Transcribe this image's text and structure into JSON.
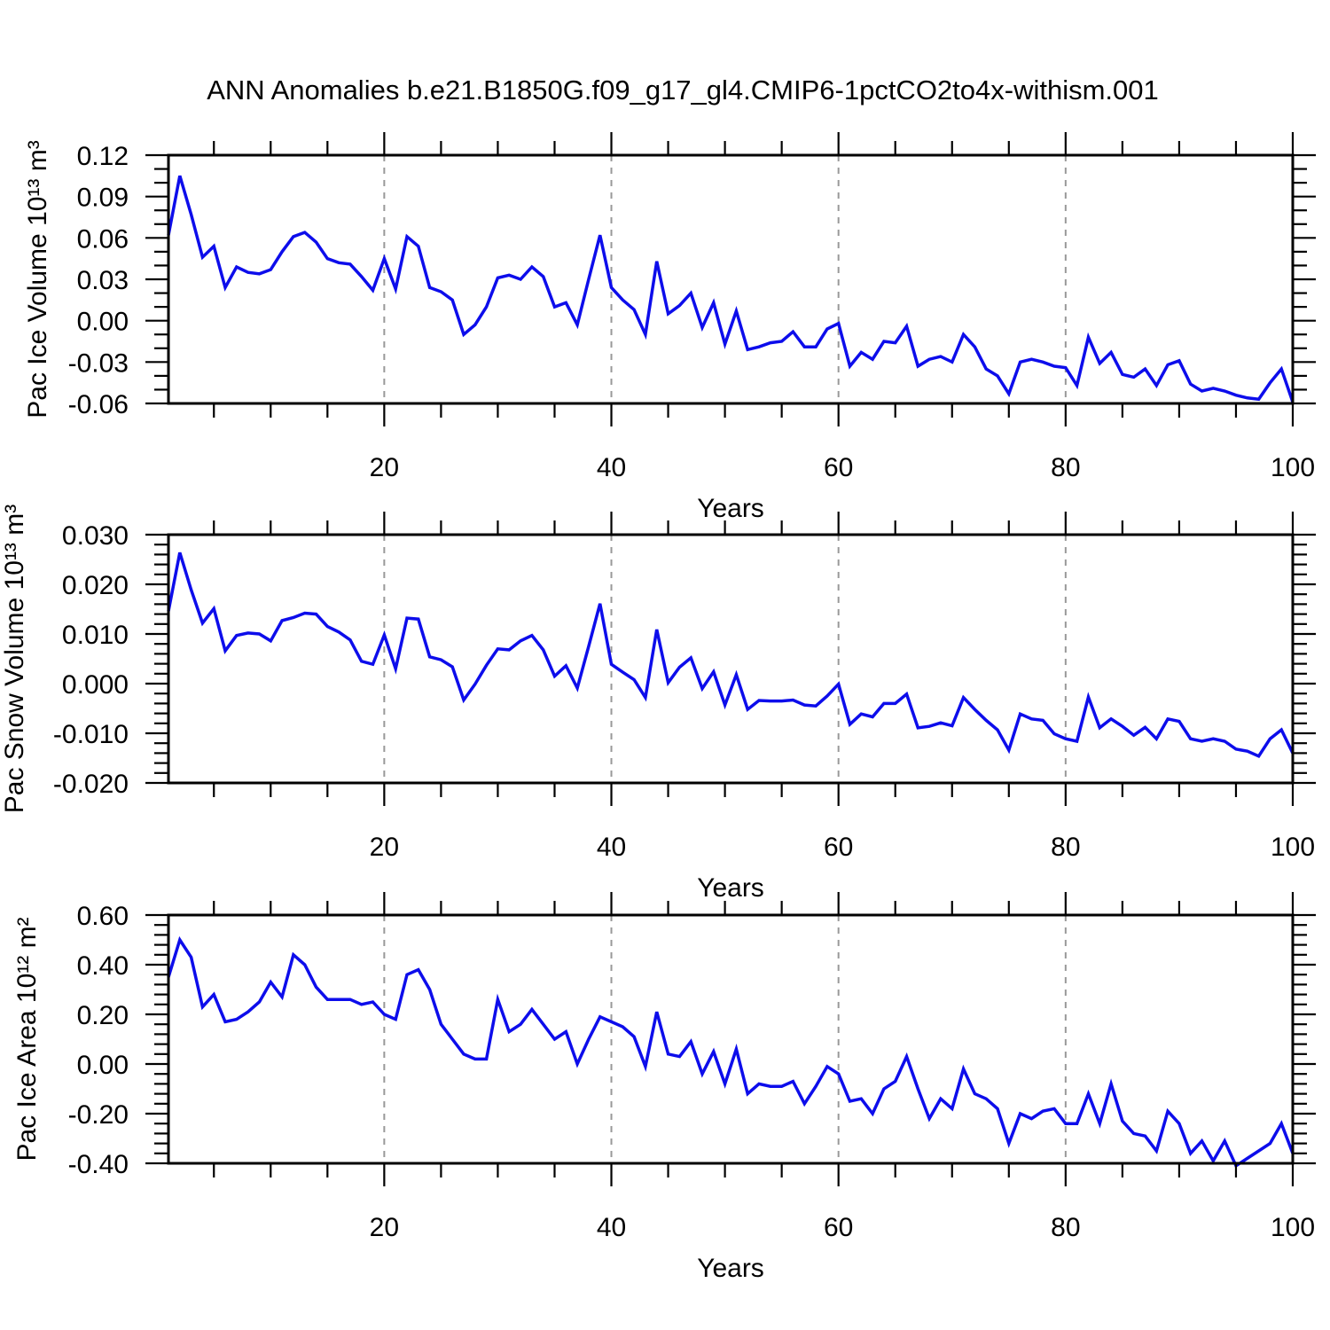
{
  "title": "ANN Anomalies b.e21.B1850G.f09_g17_gl4.CMIP6-1pctCO2to4x-withism.001",
  "colors": {
    "line": "#0d0deb",
    "grid": "#999999",
    "axis": "#000000",
    "text": "#000000",
    "background": "#ffffff"
  },
  "chart_data": [
    {
      "type": "line",
      "title": "",
      "ylabel": "Pac Ice Volume 10¹³ m³",
      "xlabel": "Years",
      "legend": "none",
      "grid": "dashed-vertical-at-major-x",
      "x_start": 1,
      "xlim": [
        1,
        100
      ],
      "x_major_step": 20,
      "x_minor_step": 5,
      "x_major_ticks": [
        20,
        40,
        60,
        80,
        100
      ],
      "grid_x": [
        20,
        40,
        60,
        80
      ],
      "ylim": [
        -0.06,
        0.12
      ],
      "y_major_step": 0.03,
      "y_minor_step": 0.01,
      "y_decimals": 2,
      "y_major_ticks": [
        0.12,
        0.09,
        0.06,
        0.03,
        0.0,
        -0.03,
        -0.06
      ],
      "values": [
        0.062,
        0.105,
        0.077,
        0.046,
        0.054,
        0.024,
        0.039,
        0.035,
        0.034,
        0.037,
        0.05,
        0.061,
        0.064,
        0.057,
        0.045,
        0.042,
        0.041,
        0.032,
        0.022,
        0.045,
        0.023,
        0.061,
        0.054,
        0.024,
        0.021,
        0.015,
        -0.01,
        -0.003,
        0.01,
        0.031,
        0.033,
        0.03,
        0.039,
        0.032,
        0.01,
        0.013,
        -0.003,
        0.03,
        0.062,
        0.024,
        0.015,
        0.008,
        -0.01,
        0.043,
        0.005,
        0.011,
        0.02,
        -0.005,
        0.013,
        -0.017,
        0.007,
        -0.021,
        -0.019,
        -0.016,
        -0.015,
        -0.008,
        -0.019,
        -0.019,
        -0.006,
        -0.002,
        -0.033,
        -0.023,
        -0.028,
        -0.015,
        -0.016,
        -0.004,
        -0.033,
        -0.028,
        -0.026,
        -0.03,
        -0.01,
        -0.019,
        -0.035,
        -0.04,
        -0.053,
        -0.03,
        -0.028,
        -0.03,
        -0.033,
        -0.034,
        -0.047,
        -0.012,
        -0.031,
        -0.023,
        -0.039,
        -0.041,
        -0.035,
        -0.047,
        -0.032,
        -0.029,
        -0.046,
        -0.051,
        -0.049,
        -0.051,
        -0.054,
        -0.056,
        -0.057,
        -0.045,
        -0.035,
        -0.059
      ]
    },
    {
      "type": "line",
      "title": "",
      "ylabel": "Pac Snow Volume 10¹³ m³",
      "xlabel": "Years",
      "legend": "none",
      "grid": "dashed-vertical-at-major-x",
      "x_start": 1,
      "xlim": [
        1,
        100
      ],
      "x_major_step": 20,
      "x_minor_step": 5,
      "x_major_ticks": [
        20,
        40,
        60,
        80,
        100
      ],
      "grid_x": [
        20,
        40,
        60,
        80
      ],
      "ylim": [
        -0.02,
        0.03
      ],
      "y_major_step": 0.01,
      "y_minor_step": 0.002,
      "y_decimals": 3,
      "y_major_ticks": [
        0.03,
        0.02,
        0.01,
        0.0,
        -0.01,
        -0.02
      ],
      "values": [
        0.0146,
        0.0264,
        0.0189,
        0.0122,
        0.0151,
        0.0066,
        0.0097,
        0.0102,
        0.01,
        0.0086,
        0.0127,
        0.0133,
        0.0142,
        0.014,
        0.0115,
        0.0104,
        0.0088,
        0.0045,
        0.0039,
        0.0098,
        0.003,
        0.0132,
        0.013,
        0.0054,
        0.0048,
        0.0034,
        -0.0033,
        -0.0001,
        0.0037,
        0.007,
        0.0068,
        0.0086,
        0.0097,
        0.0068,
        0.0015,
        0.0036,
        -0.0009,
        0.0075,
        0.0161,
        0.0039,
        0.0023,
        0.0008,
        -0.0028,
        0.0109,
        0.0002,
        0.0033,
        0.0052,
        -0.001,
        0.0024,
        -0.0043,
        0.0018,
        -0.0052,
        -0.0034,
        -0.0035,
        -0.0035,
        -0.0033,
        -0.0043,
        -0.0045,
        -0.0025,
        -0.0001,
        -0.0082,
        -0.0061,
        -0.0067,
        -0.004,
        -0.004,
        -0.0021,
        -0.0089,
        -0.0086,
        -0.0079,
        -0.0085,
        -0.0028,
        -0.0052,
        -0.0074,
        -0.0093,
        -0.0134,
        -0.0061,
        -0.0071,
        -0.0074,
        -0.0101,
        -0.0111,
        -0.0116,
        -0.0027,
        -0.0089,
        -0.0071,
        -0.0086,
        -0.0104,
        -0.0088,
        -0.0111,
        -0.0071,
        -0.0076,
        -0.0111,
        -0.0116,
        -0.0111,
        -0.0116,
        -0.0132,
        -0.0136,
        -0.0146,
        -0.0111,
        -0.0093,
        -0.014
      ]
    },
    {
      "type": "line",
      "title": "",
      "ylabel": "Pac Ice Area 10¹² m²",
      "xlabel": "Years",
      "legend": "none",
      "grid": "dashed-vertical-at-major-x",
      "x_start": 1,
      "xlim": [
        1,
        100
      ],
      "x_major_step": 20,
      "x_minor_step": 5,
      "x_major_ticks": [
        20,
        40,
        60,
        80,
        100
      ],
      "grid_x": [
        20,
        40,
        60,
        80
      ],
      "ylim": [
        -0.4,
        0.6
      ],
      "y_major_step": 0.2,
      "y_minor_step": 0.04,
      "y_decimals": 2,
      "y_major_ticks": [
        0.6,
        0.4,
        0.2,
        0.0,
        -0.2,
        -0.4
      ],
      "values": [
        0.35,
        0.5,
        0.43,
        0.23,
        0.28,
        0.17,
        0.18,
        0.21,
        0.25,
        0.33,
        0.27,
        0.44,
        0.4,
        0.31,
        0.26,
        0.26,
        0.26,
        0.24,
        0.25,
        0.2,
        0.18,
        0.36,
        0.38,
        0.3,
        0.16,
        0.1,
        0.04,
        0.02,
        0.02,
        0.26,
        0.13,
        0.16,
        0.22,
        0.16,
        0.1,
        0.13,
        0.0,
        0.1,
        0.19,
        0.17,
        0.15,
        0.11,
        -0.01,
        0.21,
        0.04,
        0.03,
        0.09,
        -0.04,
        0.05,
        -0.08,
        0.06,
        -0.12,
        -0.08,
        -0.09,
        -0.09,
        -0.07,
        -0.16,
        -0.09,
        -0.01,
        -0.04,
        -0.15,
        -0.14,
        -0.2,
        -0.1,
        -0.07,
        0.03,
        -0.1,
        -0.22,
        -0.14,
        -0.18,
        -0.02,
        -0.12,
        -0.14,
        -0.18,
        -0.32,
        -0.2,
        -0.22,
        -0.19,
        -0.18,
        -0.24,
        -0.24,
        -0.12,
        -0.24,
        -0.08,
        -0.23,
        -0.28,
        -0.29,
        -0.35,
        -0.19,
        -0.24,
        -0.36,
        -0.31,
        -0.39,
        -0.31,
        -0.41,
        -0.38,
        -0.35,
        -0.32,
        -0.24,
        -0.36
      ]
    }
  ]
}
